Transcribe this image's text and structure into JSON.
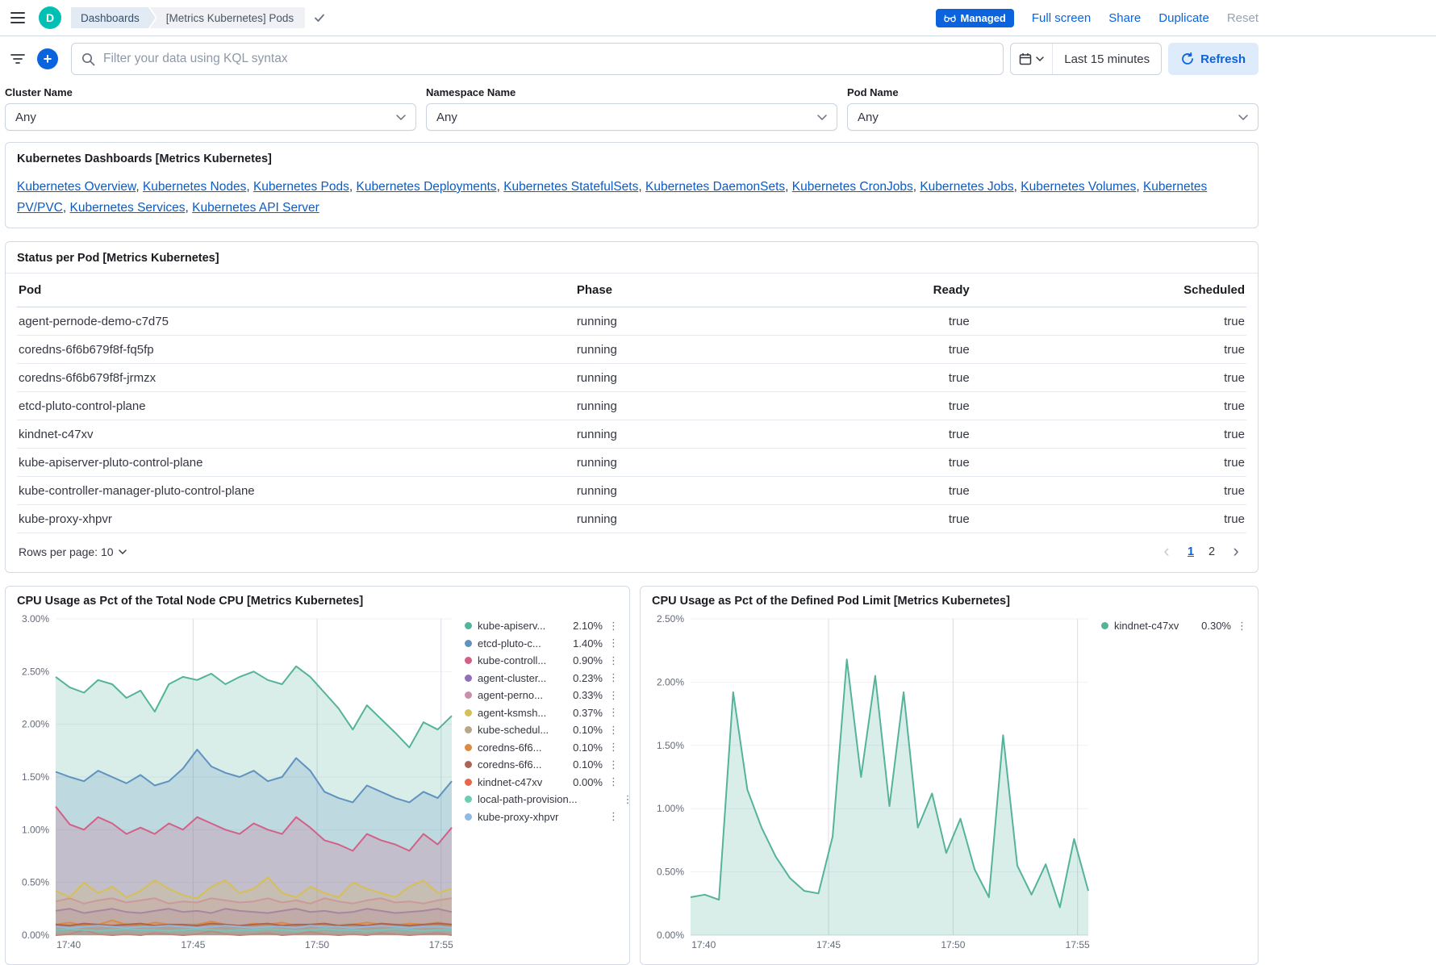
{
  "colors": {
    "primary": "#0B64DD",
    "logo_teal": "#00BFB3",
    "link": "#0A5DC7"
  },
  "icons": {
    "plus": "+",
    "chevron_left": "‹",
    "chevron_right": "›",
    "kebab": "⋮"
  },
  "header": {
    "logo_letter": "D",
    "breadcrumbs": [
      {
        "label": "Dashboards"
      },
      {
        "label": "[Metrics Kubernetes] Pods"
      }
    ],
    "managed_badge": "Managed",
    "actions": [
      "Full screen",
      "Share",
      "Duplicate",
      "Reset"
    ]
  },
  "query_bar": {
    "placeholder": "Filter your data using KQL syntax",
    "time_range": "Last 15 minutes",
    "refresh_label": "Refresh"
  },
  "controls": [
    {
      "label": "Cluster Name",
      "value": "Any"
    },
    {
      "label": "Namespace Name",
      "value": "Any"
    },
    {
      "label": "Pod Name",
      "value": "Any"
    }
  ],
  "links_panel": {
    "title": "Kubernetes Dashboards [Metrics Kubernetes]",
    "links": [
      "Kubernetes Overview",
      "Kubernetes Nodes",
      "Kubernetes Pods",
      "Kubernetes Deployments",
      "Kubernetes StatefulSets",
      "Kubernetes DaemonSets",
      "Kubernetes CronJobs",
      "Kubernetes Jobs",
      "Kubernetes Volumes",
      "Kubernetes PV/PVC",
      "Kubernetes Services",
      "Kubernetes API Server"
    ]
  },
  "table_panel": {
    "title": "Status per Pod [Metrics Kubernetes]",
    "columns": [
      "Pod",
      "Phase",
      "Ready",
      "Scheduled"
    ],
    "rows": [
      [
        "agent-pernode-demo-c7d75",
        "running",
        "true",
        "true"
      ],
      [
        "coredns-6f6b679f8f-fq5fp",
        "running",
        "true",
        "true"
      ],
      [
        "coredns-6f6b679f8f-jrmzx",
        "running",
        "true",
        "true"
      ],
      [
        "etcd-pluto-control-plane",
        "running",
        "true",
        "true"
      ],
      [
        "kindnet-c47xv",
        "running",
        "true",
        "true"
      ],
      [
        "kube-apiserver-pluto-control-plane",
        "running",
        "true",
        "true"
      ],
      [
        "kube-controller-manager-pluto-control-plane",
        "running",
        "true",
        "true"
      ],
      [
        "kube-proxy-xhpvr",
        "running",
        "true",
        "true"
      ]
    ],
    "rows_per_page": "Rows per page: 10",
    "pages": [
      "1",
      "2"
    ]
  },
  "chart_data": [
    {
      "type": "area",
      "title": "CPU Usage as Pct of the Total Node CPU [Metrics Kubernetes]",
      "x_ticks": [
        "17:40",
        "17:45",
        "17:50",
        "17:55"
      ],
      "x_tick_pos": [
        0.033,
        0.347,
        0.66,
        0.973
      ],
      "y_ticks": [
        "3.00%",
        "2.50%",
        "2.00%",
        "1.50%",
        "1.00%",
        "0.50%",
        "0.00%"
      ],
      "ylim": [
        0,
        3.0
      ],
      "legend_position": "right",
      "grid": true,
      "series": [
        {
          "name": "kube-apiserv...",
          "value_label": "2.10%",
          "color": "#54B399",
          "values": [
            2.45,
            2.35,
            2.3,
            2.42,
            2.38,
            2.25,
            2.32,
            2.12,
            2.38,
            2.45,
            2.42,
            2.48,
            2.38,
            2.45,
            2.5,
            2.42,
            2.38,
            2.55,
            2.45,
            2.3,
            2.15,
            1.95,
            2.18,
            2.05,
            1.92,
            1.78,
            2.02,
            1.95,
            2.08
          ]
        },
        {
          "name": "etcd-pluto-c...",
          "value_label": "1.40%",
          "color": "#6092C0",
          "values": [
            1.55,
            1.5,
            1.46,
            1.56,
            1.5,
            1.44,
            1.52,
            1.42,
            1.46,
            1.58,
            1.76,
            1.6,
            1.54,
            1.5,
            1.56,
            1.46,
            1.5,
            1.68,
            1.56,
            1.36,
            1.3,
            1.26,
            1.42,
            1.36,
            1.3,
            1.26,
            1.36,
            1.3,
            1.46
          ]
        },
        {
          "name": "kube-controll...",
          "value_label": "0.90%",
          "color": "#D36086",
          "values": [
            1.22,
            1.05,
            1.0,
            1.12,
            1.06,
            0.96,
            1.02,
            0.96,
            1.06,
            1.0,
            1.12,
            1.06,
            1.0,
            0.96,
            1.06,
            1.0,
            0.96,
            1.12,
            1.02,
            0.9,
            0.86,
            0.8,
            0.96,
            0.9,
            0.86,
            0.8,
            0.96,
            0.86,
            1.02
          ]
        },
        {
          "name": "agent-cluster...",
          "value_label": "0.23%",
          "color": "#9170B8",
          "values": [
            0.23,
            0.25,
            0.21,
            0.23,
            0.25,
            0.22,
            0.21,
            0.23,
            0.25,
            0.22,
            0.23,
            0.21,
            0.25,
            0.23,
            0.22,
            0.21,
            0.23,
            0.25,
            0.22,
            0.23,
            0.21,
            0.22,
            0.25,
            0.23,
            0.21,
            0.22,
            0.23,
            0.25,
            0.22
          ]
        },
        {
          "name": "agent-perno...",
          "value_label": "0.33%",
          "color": "#CA8EAE",
          "values": [
            0.32,
            0.35,
            0.3,
            0.33,
            0.35,
            0.31,
            0.33,
            0.35,
            0.3,
            0.32,
            0.31,
            0.35,
            0.33,
            0.31,
            0.32,
            0.35,
            0.31,
            0.33,
            0.3,
            0.35,
            0.32,
            0.3,
            0.33,
            0.35,
            0.31,
            0.32,
            0.3,
            0.33,
            0.35
          ]
        },
        {
          "name": "agent-ksmsh...",
          "value_label": "0.37%",
          "color": "#D6BF57",
          "values": [
            0.42,
            0.36,
            0.5,
            0.4,
            0.46,
            0.36,
            0.42,
            0.52,
            0.44,
            0.38,
            0.35,
            0.46,
            0.52,
            0.4,
            0.44,
            0.55,
            0.4,
            0.36,
            0.46,
            0.4,
            0.36,
            0.5,
            0.44,
            0.4,
            0.36,
            0.46,
            0.52,
            0.4,
            0.44
          ]
        },
        {
          "name": "kube-schedul...",
          "value_label": "0.10%",
          "color": "#B9A888",
          "values": [
            0.1,
            0.11,
            0.1,
            0.09,
            0.1,
            0.11,
            0.1,
            0.1,
            0.09,
            0.1,
            0.11,
            0.1,
            0.1,
            0.09,
            0.1,
            0.1,
            0.11,
            0.1,
            0.09,
            0.1,
            0.1,
            0.11,
            0.1,
            0.09,
            0.1,
            0.11,
            0.1,
            0.1,
            0.09
          ]
        },
        {
          "name": "coredns-6f6...",
          "value_label": "0.10%",
          "color": "#DA8B45",
          "values": [
            0.1,
            0.12,
            0.09,
            0.1,
            0.14,
            0.1,
            0.09,
            0.12,
            0.1,
            0.09,
            0.1,
            0.13,
            0.1,
            0.09,
            0.11,
            0.1,
            0.12,
            0.09,
            0.1,
            0.11,
            0.09,
            0.1,
            0.12,
            0.1,
            0.09,
            0.11,
            0.1,
            0.12,
            0.1
          ]
        },
        {
          "name": "coredns-6f6...",
          "value_label": "0.10%",
          "color": "#AA6556",
          "values": [
            0.1,
            0.09,
            0.11,
            0.1,
            0.09,
            0.1,
            0.11,
            0.09,
            0.1,
            0.1,
            0.09,
            0.11,
            0.1,
            0.09,
            0.1,
            0.11,
            0.09,
            0.1,
            0.1,
            0.11,
            0.09,
            0.1,
            0.09,
            0.11,
            0.1,
            0.09,
            0.1,
            0.11,
            0.1
          ]
        },
        {
          "name": "kindnet-c47xv",
          "value_label": "0.00%",
          "color": "#E7664C",
          "values": [
            0,
            0.01,
            0.05,
            0.01,
            0,
            0.01,
            0,
            0.02,
            0.01,
            0,
            0.01,
            0.04,
            0.01,
            0,
            0.01,
            0.02,
            0,
            0.01,
            0.03,
            0.01,
            0,
            0.01,
            0,
            0.02,
            0.01,
            0,
            0.01,
            0.02,
            0
          ]
        },
        {
          "name": "local-path-provision...",
          "value_label": "",
          "color": "#6DCCB1",
          "values": [
            0.05,
            0.06,
            0.05,
            0.04,
            0.05,
            0.06,
            0.05,
            0.05,
            0.04,
            0.05,
            0.06,
            0.05,
            0.04,
            0.05,
            0.05,
            0.06,
            0.05,
            0.04,
            0.05,
            0.06,
            0.05,
            0.05,
            0.04,
            0.05,
            0.06,
            0.05,
            0.04,
            0.05,
            0.05
          ]
        },
        {
          "name": "kube-proxy-xhpvr",
          "value_label": "",
          "color": "#8FBBE0",
          "values": [
            0.08,
            0.07,
            0.08,
            0.09,
            0.08,
            0.07,
            0.08,
            0.08,
            0.09,
            0.08,
            0.07,
            0.08,
            0.09,
            0.08,
            0.07,
            0.08,
            0.08,
            0.07,
            0.09,
            0.08,
            0.08,
            0.07,
            0.08,
            0.09,
            0.08,
            0.07,
            0.08,
            0.08,
            0.07
          ]
        }
      ]
    },
    {
      "type": "area",
      "title": "CPU Usage as Pct of the Defined Pod Limit [Metrics Kubernetes]",
      "x_ticks": [
        "17:40",
        "17:45",
        "17:50",
        "17:55"
      ],
      "x_tick_pos": [
        0.033,
        0.347,
        0.66,
        0.973
      ],
      "y_ticks": [
        "2.50%",
        "2.00%",
        "1.50%",
        "1.00%",
        "0.50%",
        "0.00%"
      ],
      "ylim": [
        0,
        2.5
      ],
      "legend_position": "right",
      "grid": true,
      "series": [
        {
          "name": "kindnet-c47xv",
          "value_label": "0.30%",
          "color": "#54B399",
          "values": [
            0.3,
            0.32,
            0.28,
            1.92,
            1.15,
            0.85,
            0.62,
            0.45,
            0.35,
            0.33,
            0.78,
            2.18,
            1.25,
            2.05,
            1.02,
            1.92,
            0.85,
            1.12,
            0.65,
            0.92,
            0.52,
            0.3,
            1.58,
            0.55,
            0.32,
            0.56,
            0.22,
            0.76,
            0.35
          ]
        }
      ]
    }
  ]
}
